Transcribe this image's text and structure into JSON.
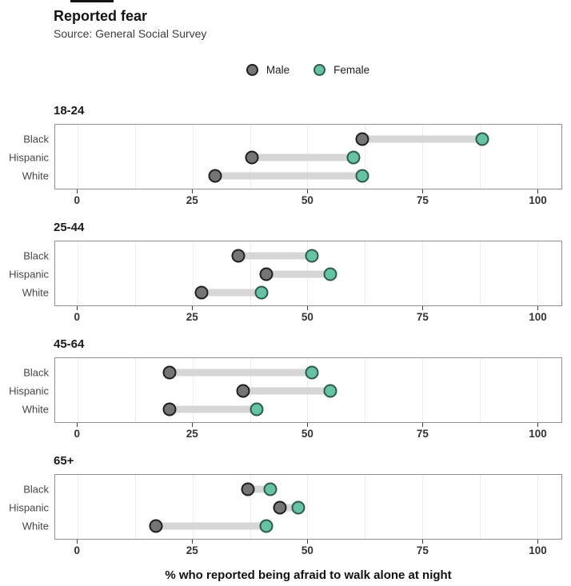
{
  "header": {
    "title": "Reported fear",
    "subtitle": "Source: General Social Survey"
  },
  "legend": {
    "items": [
      {
        "label": "Male",
        "color": "#757575",
        "border": "#1f1f1f"
      },
      {
        "label": "Female",
        "color": "#66c2a5",
        "border": "#2e5a4b"
      }
    ]
  },
  "x_axis": {
    "title": "% who reported being afraid to walk alone at night",
    "ticks": [
      0,
      25,
      50,
      75,
      100
    ]
  },
  "chart_data": {
    "type": "dumbbell",
    "orientation": "horizontal",
    "title": "Reported fear",
    "subtitle": "Source: General Social Survey",
    "xlabel": "% who reported being afraid to walk alone at night",
    "series_names": [
      "Male",
      "Female"
    ],
    "categories": [
      "Black",
      "Hispanic",
      "White"
    ],
    "x_ticks": [
      0,
      25,
      50,
      75,
      100
    ],
    "x_range_visible": [
      -4.9,
      105.3
    ],
    "gridline_step": 12.5,
    "grid": true,
    "legend_position": "top-center",
    "panels": [
      {
        "age_group": "18-24",
        "rows": [
          {
            "category": "Black",
            "male": 62,
            "female": 88
          },
          {
            "category": "Hispanic",
            "male": 38,
            "female": 60
          },
          {
            "category": "White",
            "male": 30,
            "female": 62
          }
        ]
      },
      {
        "age_group": "25-44",
        "rows": [
          {
            "category": "Black",
            "male": 35,
            "female": 51
          },
          {
            "category": "Hispanic",
            "male": 41,
            "female": 55
          },
          {
            "category": "White",
            "male": 27,
            "female": 40
          }
        ]
      },
      {
        "age_group": "45-64",
        "rows": [
          {
            "category": "Black",
            "male": 20,
            "female": 51
          },
          {
            "category": "Hispanic",
            "male": 36,
            "female": 55
          },
          {
            "category": "White",
            "male": 20,
            "female": 39
          }
        ]
      },
      {
        "age_group": "65+",
        "rows": [
          {
            "category": "Black",
            "male": 37,
            "female": 42
          },
          {
            "category": "Hispanic",
            "male": 44,
            "female": 48
          },
          {
            "category": "White",
            "male": 17,
            "female": 41
          }
        ]
      }
    ]
  },
  "colors": {
    "male_fill": "#757575",
    "male_stroke": "#1f1f1f",
    "female_fill": "#66c2a5",
    "female_stroke": "#2e5a4b",
    "connector_bar": "#d6d6d6",
    "gridline": "#ececec",
    "panel_border": "#8f8f8f"
  }
}
